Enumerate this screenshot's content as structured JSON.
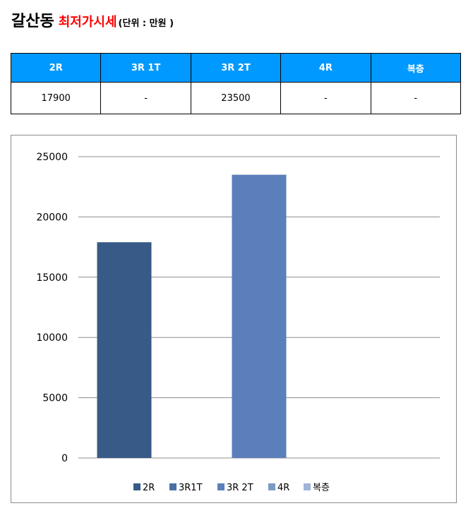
{
  "header": {
    "place": "갈산동",
    "kind": "최저가시세",
    "unit": "(단위 : 만원 )"
  },
  "table": {
    "headers": [
      "2R",
      "3R 1T",
      "3R 2T",
      "4R",
      "복층"
    ],
    "row": [
      "17900",
      "-",
      "23500",
      "-",
      "-"
    ]
  },
  "chart_data": {
    "type": "bar",
    "categories": [
      "2R",
      "3R1T",
      "3R 2T",
      "4R",
      "복층"
    ],
    "values": [
      17900,
      null,
      23500,
      null,
      null
    ],
    "colors": [
      "#375a87",
      "#4a6fa5",
      "#5b7fba",
      "#7d9ac4",
      "#9fb4d6"
    ],
    "yticks": [
      "25000",
      "20000",
      "15000",
      "10000",
      "5000",
      "0"
    ],
    "ylim": [
      0,
      25000
    ],
    "grid": true,
    "legend_position": "bottom"
  }
}
